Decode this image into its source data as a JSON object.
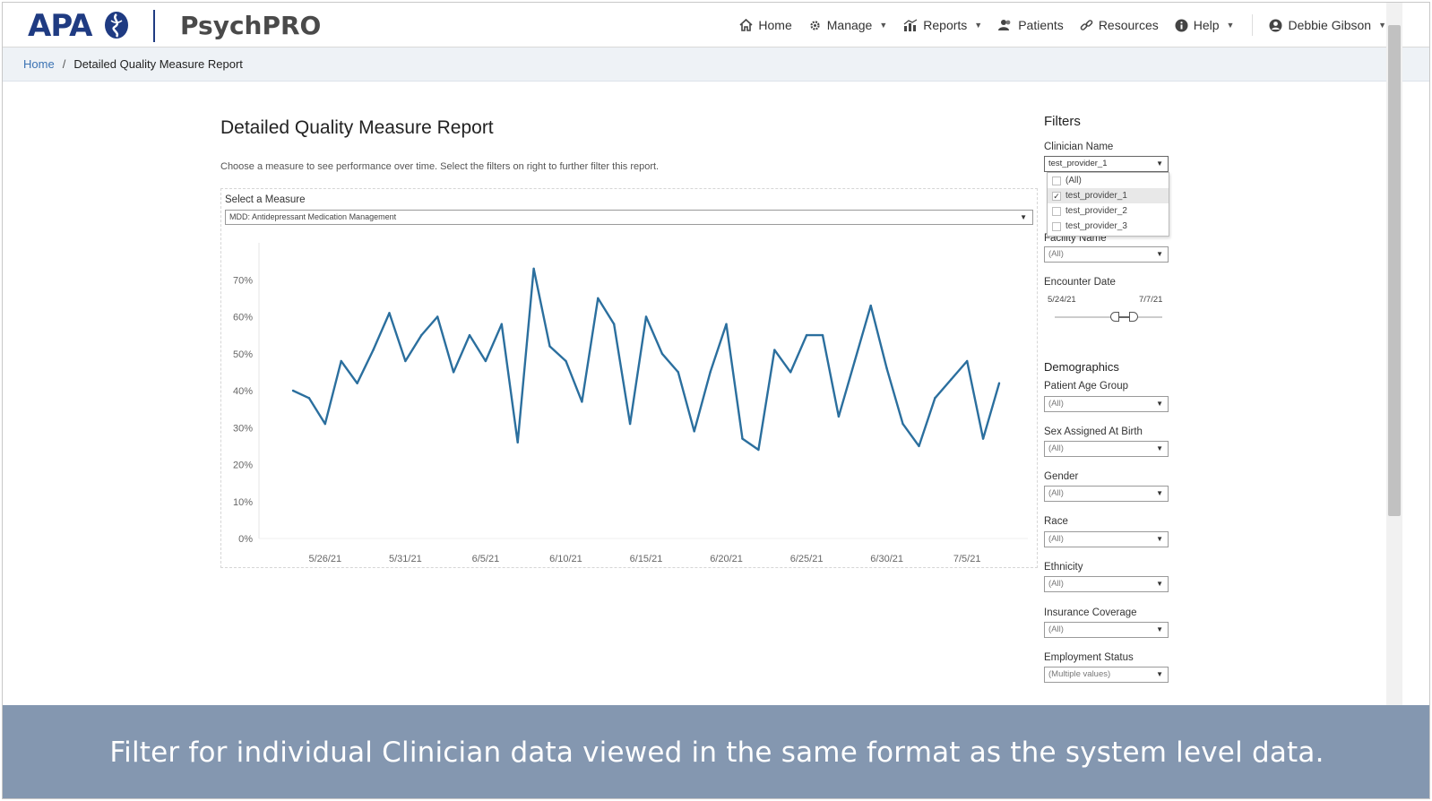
{
  "brand": {
    "apa": "APA",
    "product": "PsychPRO",
    "primary_color": "#1f3b82"
  },
  "nav": {
    "items": [
      {
        "label": "Home",
        "icon": "home-icon",
        "has_dropdown": false
      },
      {
        "label": "Manage",
        "icon": "gear-icon",
        "has_dropdown": true
      },
      {
        "label": "Reports",
        "icon": "chart-icon",
        "has_dropdown": true
      },
      {
        "label": "Patients",
        "icon": "users-icon",
        "has_dropdown": false
      },
      {
        "label": "Resources",
        "icon": "link-icon",
        "has_dropdown": false
      },
      {
        "label": "Help",
        "icon": "info-icon",
        "has_dropdown": true
      }
    ],
    "user": {
      "label": "Debbie Gibson",
      "icon": "user-circle-icon"
    }
  },
  "breadcrumb": {
    "home": "Home",
    "separator": "/",
    "current": "Detailed Quality Measure Report"
  },
  "report": {
    "title": "Detailed Quality Measure Report",
    "description": "Choose a measure to see performance over time. Select the filters on right to further filter this report.",
    "measure_label": "Select a Measure",
    "measure_value": "MDD: Antidepressant Medication Management"
  },
  "chart_data": {
    "type": "line",
    "line_color": "#2b6f9e",
    "y_ticks": [
      "0%",
      "10%",
      "20%",
      "30%",
      "40%",
      "50%",
      "60%",
      "70%"
    ],
    "ylim": [
      0,
      80
    ],
    "x_ticks": [
      "5/26/21",
      "5/31/21",
      "6/5/21",
      "6/10/21",
      "6/15/21",
      "6/20/21",
      "6/25/21",
      "6/30/21",
      "7/5/21"
    ],
    "x": [
      "5/24/21",
      "5/25/21",
      "5/26/21",
      "5/27/21",
      "5/28/21",
      "5/29/21",
      "5/30/21",
      "5/31/21",
      "6/1/21",
      "6/2/21",
      "6/3/21",
      "6/4/21",
      "6/5/21",
      "6/6/21",
      "6/7/21",
      "6/8/21",
      "6/9/21",
      "6/10/21",
      "6/11/21",
      "6/12/21",
      "6/13/21",
      "6/14/21",
      "6/15/21",
      "6/16/21",
      "6/17/21",
      "6/18/21",
      "6/19/21",
      "6/20/21",
      "6/21/21",
      "6/22/21",
      "6/23/21",
      "6/24/21",
      "6/25/21",
      "6/26/21",
      "6/27/21",
      "6/28/21",
      "6/29/21",
      "6/30/21",
      "7/1/21",
      "7/2/21",
      "7/3/21",
      "7/4/21",
      "7/5/21",
      "7/6/21",
      "7/7/21"
    ],
    "y": [
      40,
      38,
      31,
      48,
      42,
      51,
      61,
      48,
      55,
      60,
      45,
      55,
      48,
      58,
      26,
      73,
      52,
      48,
      37,
      65,
      58,
      31,
      60,
      50,
      45,
      29,
      45,
      58,
      27,
      24,
      51,
      45,
      55,
      55,
      33,
      48,
      63,
      46,
      31,
      25,
      38,
      43,
      48,
      27,
      42
    ]
  },
  "filters": {
    "title": "Filters",
    "clinician": {
      "label": "Clinician Name",
      "value": "test_provider_1",
      "options": [
        {
          "label": "(All)",
          "checked": false
        },
        {
          "label": "test_provider_1",
          "checked": true
        },
        {
          "label": "test_provider_2",
          "checked": false
        },
        {
          "label": "test_provider_3",
          "checked": false
        }
      ]
    },
    "facility": {
      "label": "Facility Name",
      "value": "(All)"
    },
    "encounter_date": {
      "label": "Encounter Date",
      "start": "5/24/21",
      "end": "7/7/21"
    },
    "demographics_title": "Demographics",
    "age_group": {
      "label": "Patient Age Group",
      "value": "(All)"
    },
    "sex": {
      "label": "Sex Assigned At Birth",
      "value": "(All)"
    },
    "gender": {
      "label": "Gender",
      "value": "(All)"
    },
    "race": {
      "label": "Race",
      "value": "(All)"
    },
    "ethnicity": {
      "label": "Ethnicity",
      "value": "(All)"
    },
    "insurance": {
      "label": "Insurance Coverage",
      "value": "(All)"
    },
    "employment": {
      "label": "Employment Status",
      "value": "(Multiple values)"
    }
  },
  "caption": {
    "text": "Filter for individual Clinician data viewed in the same format as the system level data.",
    "background": "#8497b0"
  }
}
